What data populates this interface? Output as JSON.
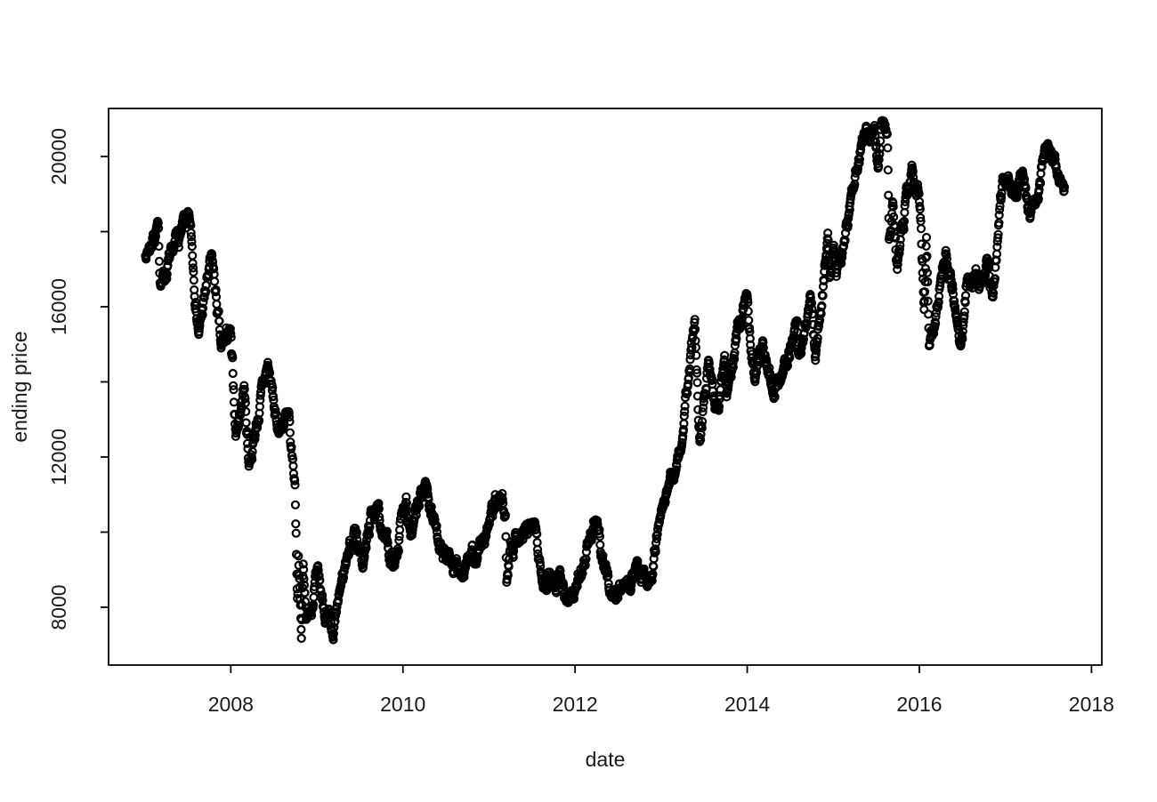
{
  "figure": {
    "background": "#ffffff"
  },
  "chart_data": {
    "type": "scatter",
    "title": "",
    "xlabel": "date",
    "ylabel": "ending price",
    "marker": "open-circle",
    "marker_color": "#000000",
    "grid": false,
    "legend": "none",
    "xlim": [
      2006.58,
      2018.12
    ],
    "ylim": [
      6461,
      21278
    ],
    "x_ticks": [
      2008,
      2010,
      2012,
      2014,
      2016,
      2018
    ],
    "y_ticks": [
      8000,
      10000,
      12000,
      14000,
      16000,
      18000,
      20000
    ],
    "y_labeled_ticks": [
      8000,
      12000,
      16000,
      20000
    ],
    "anchors": [
      [
        "2007-01-04",
        17353
      ],
      [
        "2007-02-26",
        18215
      ],
      [
        "2007-03-05",
        16642
      ],
      [
        "2007-04-30",
        17400
      ],
      [
        "2007-06-01",
        17958
      ],
      [
        "2007-07-09",
        18261
      ],
      [
        "2007-08-17",
        15274
      ],
      [
        "2007-10-11",
        17331
      ],
      [
        "2007-11-21",
        14838
      ],
      [
        "2007-12-28",
        15308
      ],
      [
        "2008-01-04",
        14691
      ],
      [
        "2008-01-22",
        12573
      ],
      [
        "2008-02-27",
        13925
      ],
      [
        "2008-03-17",
        11788
      ],
      [
        "2008-06-06",
        14489
      ],
      [
        "2008-07-15",
        12754
      ],
      [
        "2008-08-29",
        13073
      ],
      [
        "2008-09-12",
        12215
      ],
      [
        "2008-09-30",
        11260
      ],
      [
        "2008-10-10",
        8276
      ],
      [
        "2008-10-14",
        9448
      ],
      [
        "2008-10-27",
        7163
      ],
      [
        "2008-11-04",
        9115
      ],
      [
        "2008-11-20",
        7703
      ],
      [
        "2008-12-30",
        8860
      ],
      [
        "2009-01-30",
        7994
      ],
      [
        "2009-03-10",
        7055
      ],
      [
        "2009-03-31",
        8110
      ],
      [
        "2009-05-07",
        9385
      ],
      [
        "2009-06-12",
        10136
      ],
      [
        "2009-07-13",
        9050
      ],
      [
        "2009-08-26",
        10639
      ],
      [
        "2009-09-30",
        10133
      ],
      [
        "2009-11-27",
        9082
      ],
      [
        "2009-12-30",
        10546
      ],
      [
        "2010-01-15",
        10982
      ],
      [
        "2010-02-09",
        9932
      ],
      [
        "2010-04-05",
        11339
      ],
      [
        "2010-05-31",
        9769
      ],
      [
        "2010-07-01",
        9191
      ],
      [
        "2010-08-31",
        8824
      ],
      [
        "2010-09-30",
        9369
      ],
      [
        "2010-11-01",
        9154
      ],
      [
        "2010-12-30",
        10229
      ],
      [
        "2011-02-21",
        10857
      ],
      [
        "2011-03-10",
        10434
      ],
      [
        "2011-03-15",
        8605
      ],
      [
        "2011-03-31",
        9755
      ],
      [
        "2011-04-28",
        9850
      ],
      [
        "2011-07-08",
        10138
      ],
      [
        "2011-08-09",
        8944
      ],
      [
        "2011-09-30",
        8700
      ],
      [
        "2011-10-28",
        9050
      ],
      [
        "2011-11-25",
        8160
      ],
      [
        "2011-12-30",
        8455
      ],
      [
        "2012-02-29",
        9723
      ],
      [
        "2012-03-27",
        10255
      ],
      [
        "2012-06-04",
        8296
      ],
      [
        "2012-07-27",
        8566
      ],
      [
        "2012-09-14",
        9159
      ],
      [
        "2012-11-13",
        8661
      ],
      [
        "2012-12-28",
        10395
      ],
      [
        "2013-01-31",
        11139
      ],
      [
        "2013-03-29",
        12398
      ],
      [
        "2013-05-22",
        15627
      ],
      [
        "2013-06-13",
        12445
      ],
      [
        "2013-07-19",
        14589
      ],
      [
        "2013-08-28",
        13338
      ],
      [
        "2013-09-27",
        14760
      ],
      [
        "2013-10-08",
        13853
      ],
      [
        "2013-12-30",
        16291
      ],
      [
        "2014-02-04",
        14008
      ],
      [
        "2014-03-06",
        15134
      ],
      [
        "2014-04-14",
        13910
      ],
      [
        "2014-05-19",
        14006
      ],
      [
        "2014-07-30",
        15646
      ],
      [
        "2014-08-08",
        14778
      ],
      [
        "2014-09-25",
        16374
      ],
      [
        "2014-10-17",
        14532
      ],
      [
        "2014-12-08",
        17935
      ],
      [
        "2014-12-16",
        16755
      ],
      [
        "2014-12-30",
        17451
      ],
      [
        "2015-01-14",
        16795
      ],
      [
        "2015-03-31",
        19207
      ],
      [
        "2015-04-23",
        20133
      ],
      [
        "2015-06-24",
        20868
      ],
      [
        "2015-07-08",
        19737
      ],
      [
        "2015-07-21",
        20841
      ],
      [
        "2015-08-17",
        20554
      ],
      [
        "2015-08-25",
        17807
      ],
      [
        "2015-09-09",
        18770
      ],
      [
        "2015-09-29",
        16931
      ],
      [
        "2015-11-30",
        19747
      ],
      [
        "2015-12-30",
        19034
      ],
      [
        "2016-01-21",
        16017
      ],
      [
        "2016-02-01",
        17865
      ],
      [
        "2016-02-12",
        14953
      ],
      [
        "2016-03-31",
        16759
      ],
      [
        "2016-04-22",
        17572
      ],
      [
        "2016-06-24",
        14952
      ],
      [
        "2016-07-21",
        16810
      ],
      [
        "2016-09-27",
        16683
      ],
      [
        "2016-10-20",
        17235
      ],
      [
        "2016-11-09",
        16252
      ],
      [
        "2016-12-20",
        19494
      ],
      [
        "2017-01-31",
        19041
      ],
      [
        "2017-03-13",
        19633
      ],
      [
        "2017-04-14",
        18335
      ],
      [
        "2017-06-20",
        20230
      ],
      [
        "2017-08-29",
        19362
      ],
      [
        "2017-09-08",
        19275
      ]
    ],
    "render": {
      "points_per_year": 245,
      "noise_sd": 170,
      "noise_decay": 0.85,
      "noise_clamp": 480,
      "value_min": 6950,
      "value_max": 20950,
      "seed": 7,
      "point_radius": 4.0,
      "point_stroke_width": 2.2,
      "axis_color": "#000000",
      "text_color": "#1a1a1a"
    }
  }
}
